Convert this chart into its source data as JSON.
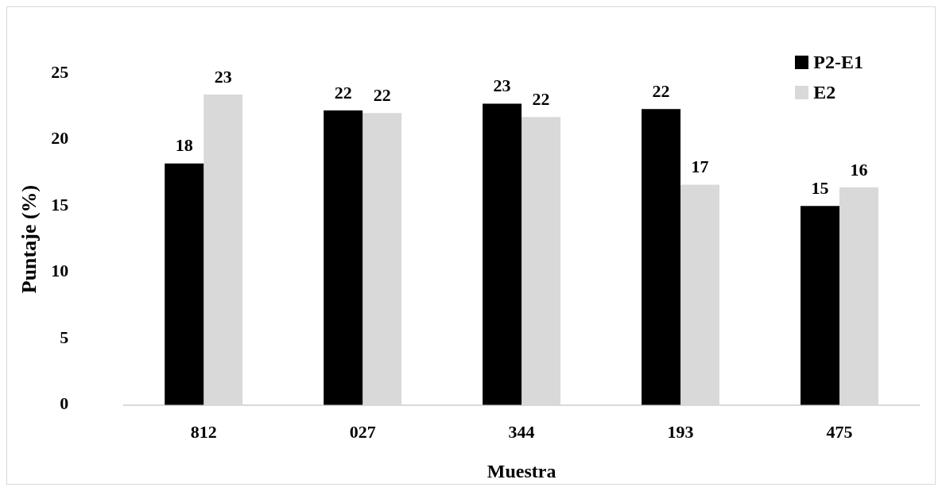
{
  "chart_data": {
    "type": "bar",
    "xlabel": "Muestra",
    "ylabel": "Puntaje (%)",
    "categories": [
      "812",
      "027",
      "344",
      "193",
      "475"
    ],
    "series": [
      {
        "name": "P2-E1",
        "color": "#000000",
        "values": [
          18.2,
          22.2,
          22.7,
          22.3,
          15.0
        ],
        "value_labels": [
          "18",
          "22",
          "23",
          "22",
          "15"
        ]
      },
      {
        "name": "E2",
        "color": "#d9d9d9",
        "values": [
          23.4,
          22.0,
          21.7,
          16.6,
          16.4
        ],
        "value_labels": [
          "23",
          "22",
          "22",
          "17",
          "16"
        ]
      }
    ],
    "ylim": [
      0,
      25
    ],
    "yticks": [
      0,
      5,
      10,
      15,
      20,
      25
    ],
    "grid": false,
    "legend": "top right"
  }
}
